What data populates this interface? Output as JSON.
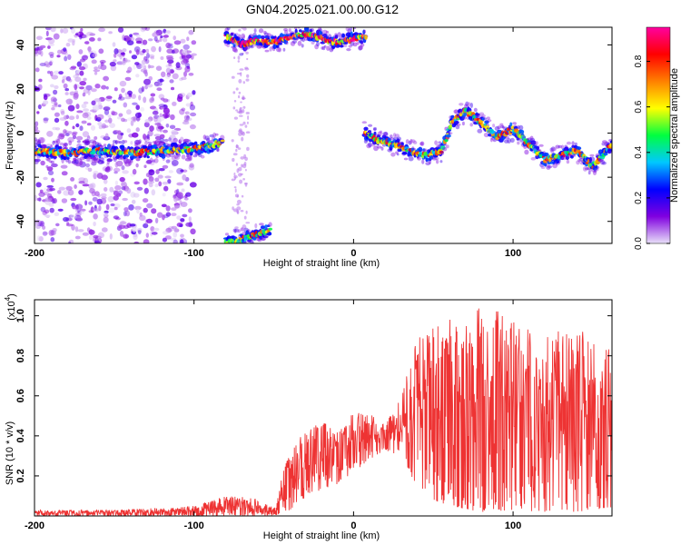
{
  "title": "GN04.2025.021.00.00.G12",
  "chart_data": [
    {
      "type": "heatmap",
      "xlabel": "Height of straight line (km)",
      "ylabel": "Frequency (Hz)",
      "xlim": [
        -200,
        162
      ],
      "ylim": [
        -50,
        48
      ],
      "xticks": [
        -200,
        -100,
        0,
        100
      ],
      "yticks": [
        -40,
        -20,
        0,
        20,
        40
      ],
      "colorbar": {
        "label": "Normalized spectral amplitude",
        "range": [
          0,
          0.95
        ],
        "ticks": [
          0.0,
          0.2,
          0.4,
          0.6,
          0.8
        ],
        "tick_labels": [
          "0.0",
          "0.2",
          "0.4",
          "0.6",
          "0.8"
        ],
        "colormap": [
          "#e8e0f8",
          "#8000e0",
          "#0000ff",
          "#00c8ff",
          "#00ff40",
          "#ffff00",
          "#ff8000",
          "#ff0000",
          "#ff00a0"
        ]
      },
      "ridges": [
        {
          "x": [
            -200,
            -180,
            -160,
            -140,
            -120,
            -100,
            -90,
            -82
          ],
          "y": [
            -8,
            -9,
            -8,
            -9,
            -8,
            -7,
            -6,
            -4
          ]
        },
        {
          "x": [
            -80,
            -70,
            -60,
            -50,
            -40,
            -30,
            -20,
            -10,
            0,
            8
          ],
          "y": [
            44,
            40,
            42,
            41,
            43,
            45,
            43,
            41,
            43,
            44
          ]
        },
        {
          "x": [
            -80,
            -70,
            -60,
            -52
          ],
          "y": [
            -50,
            -48,
            -46,
            -44
          ]
        },
        {
          "x": [
            7,
            15,
            25,
            35,
            45,
            55,
            62,
            70,
            80,
            90,
            100,
            110,
            120,
            130,
            140,
            150,
            162
          ],
          "y": [
            0,
            -3,
            -5,
            -8,
            -10,
            -8,
            5,
            10,
            5,
            -2,
            2,
            -5,
            -12,
            -10,
            -8,
            -15,
            -5
          ]
        }
      ],
      "background_noise_region": {
        "x": [
          -200,
          -100
        ],
        "y": [
          -50,
          48
        ]
      },
      "gap_region": {
        "x": [
          -100,
          -80
        ],
        "y": [
          -50,
          48
        ]
      }
    },
    {
      "type": "line",
      "xlabel": "Height of straight line (km)",
      "ylabel": "SNR (10 * v/v)",
      "yscale_label": "(x10",
      "yscale_exponent": "4",
      "yscale_close": ")",
      "xlim": [
        -200,
        162
      ],
      "ylim": [
        0,
        1.08
      ],
      "xticks": [
        -200,
        -100,
        0,
        100
      ],
      "yticks": [
        0.2,
        0.4,
        0.6,
        0.8,
        1.0
      ],
      "ytick_labels": [
        "0.2",
        "0.4",
        "0.6",
        "0.8",
        "1.0"
      ],
      "color": "#ee3333",
      "envelope": [
        {
          "x": -200,
          "lo": 0.0,
          "hi": 0.03
        },
        {
          "x": -150,
          "lo": 0.0,
          "hi": 0.03
        },
        {
          "x": -100,
          "lo": 0.0,
          "hi": 0.05
        },
        {
          "x": -80,
          "lo": 0.0,
          "hi": 0.1
        },
        {
          "x": -60,
          "lo": 0.0,
          "hi": 0.09
        },
        {
          "x": -50,
          "lo": 0.0,
          "hi": 0.04
        },
        {
          "x": -40,
          "lo": 0.03,
          "hi": 0.35
        },
        {
          "x": -30,
          "lo": 0.08,
          "hi": 0.42
        },
        {
          "x": -20,
          "lo": 0.13,
          "hi": 0.48
        },
        {
          "x": -10,
          "lo": 0.16,
          "hi": 0.42
        },
        {
          "x": 0,
          "lo": 0.22,
          "hi": 0.52
        },
        {
          "x": 10,
          "lo": 0.28,
          "hi": 0.52
        },
        {
          "x": 20,
          "lo": 0.33,
          "hi": 0.46
        },
        {
          "x": 30,
          "lo": 0.28,
          "hi": 0.6
        },
        {
          "x": 40,
          "lo": 0.15,
          "hi": 0.92
        },
        {
          "x": 50,
          "lo": 0.08,
          "hi": 0.95
        },
        {
          "x": 60,
          "lo": 0.05,
          "hi": 1.0
        },
        {
          "x": 80,
          "lo": 0.02,
          "hi": 1.07
        },
        {
          "x": 100,
          "lo": 0.03,
          "hi": 0.98
        },
        {
          "x": 120,
          "lo": 0.02,
          "hi": 0.92
        },
        {
          "x": 140,
          "lo": 0.02,
          "hi": 0.95
        },
        {
          "x": 162,
          "lo": 0.04,
          "hi": 0.82
        }
      ]
    }
  ]
}
